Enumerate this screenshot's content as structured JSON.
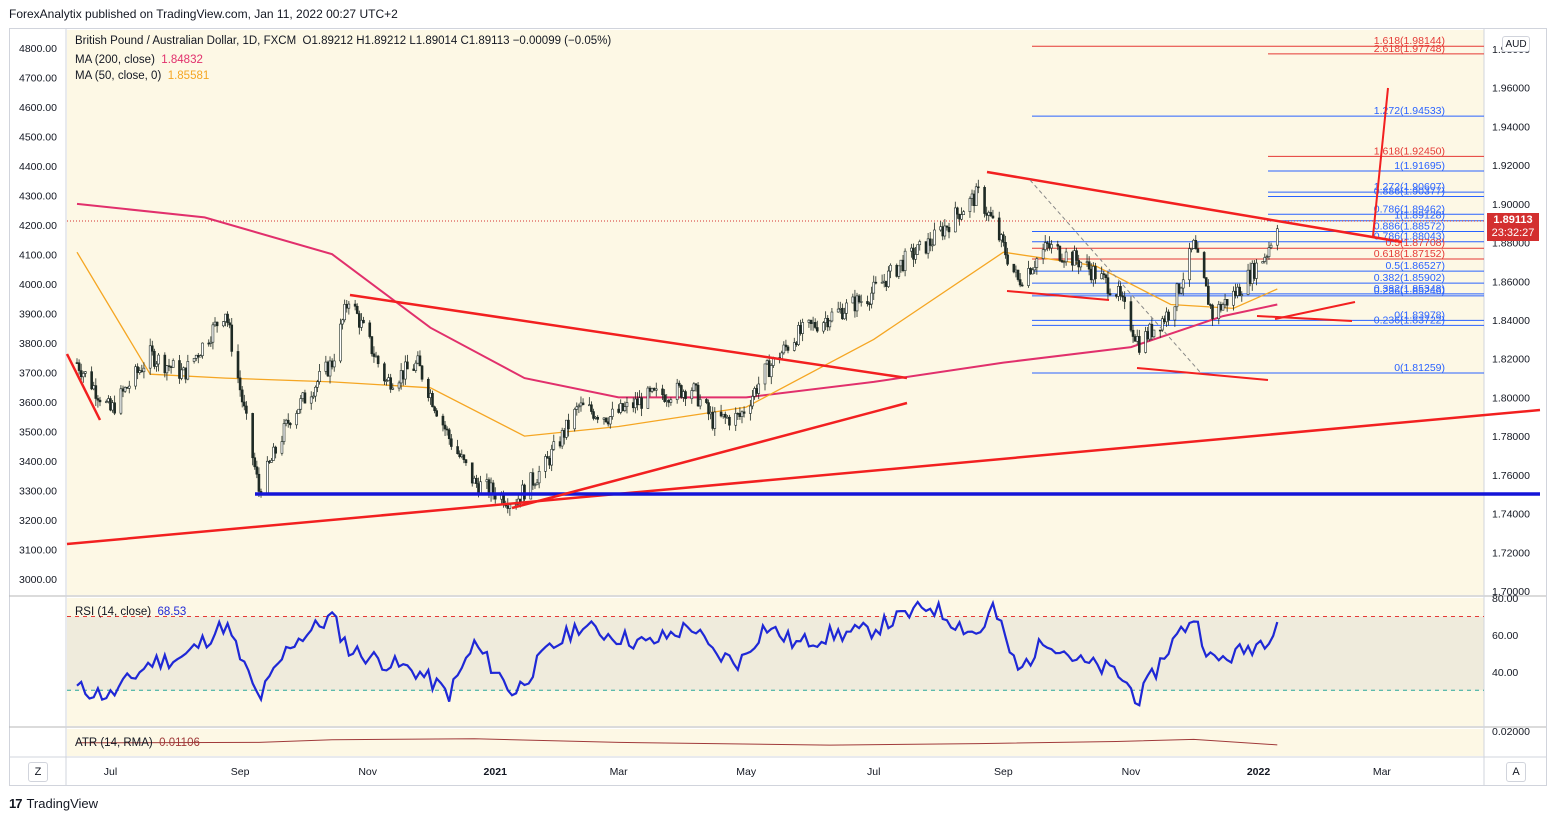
{
  "publisher_line": "ForexAnalytix published on TradingView.com, Jan 11, 2022 00:27 UTC+2",
  "branding": {
    "logo": "17",
    "name": "TradingView"
  },
  "currency_button": "AUD",
  "price_badge": {
    "price": "1.89113",
    "countdown": "23:32:27"
  },
  "corner_buttons": {
    "left": "Z",
    "right": "A"
  },
  "legend": {
    "symbol_line": "British Pound / Australian Dollar, 1D, FXCM",
    "ohlc": "O1.89212 H1.89212 L1.89014 C1.89113 −0.00099 (−0.05%)",
    "ma200_label": "MA (200, close)",
    "ma200_value": "1.84832",
    "ma50_label": "MA (50, close, 0)",
    "ma50_value": "1.85581",
    "rsi_label": "RSI (14, close)",
    "rsi_value": "68.53",
    "atr_label": "ATR (14, RMA)",
    "atr_value": "0.01106"
  },
  "colors": {
    "candle": "#1e2a24",
    "ma200": "#e1306c",
    "ma50": "#f5a623",
    "trendline": "#f22020",
    "support": "#1414d8",
    "fib_blue": "#2962ff",
    "fib_red": "#e53935",
    "rsi": "#1f28d6",
    "atr": "#a03a3a",
    "panel_bg": "#fdf8e5",
    "badge": "#d32f2f"
  },
  "chart_data": [
    {
      "type": "line",
      "subtype": "candlestick",
      "title": "British Pound / Australian Dollar, 1D, FXCM",
      "right_axis_ticks": [
        "1.98000",
        "1.96000",
        "1.94000",
        "1.92000",
        "1.90000",
        "1.88000",
        "1.86000",
        "1.84000",
        "1.82000",
        "1.80000",
        "1.78000",
        "1.76000",
        "1.74000",
        "1.72000",
        "1.70000"
      ],
      "left_axis_ticks": [
        "4800.00",
        "4700.00",
        "4600.00",
        "4500.00",
        "4400.00",
        "4300.00",
        "4200.00",
        "4100.00",
        "4000.00",
        "3900.00",
        "3800.00",
        "3700.00",
        "3600.00",
        "3500.00",
        "3400.00",
        "3300.00",
        "3200.00",
        "3100.00",
        "3000.00"
      ],
      "x_tick_labels": [
        "Jul",
        "Sep",
        "Nov",
        "2021",
        "Mar",
        "May",
        "Jul",
        "Sep",
        "Nov",
        "2022",
        "Mar"
      ],
      "ylim": [
        1.7,
        1.98
      ],
      "series": [
        {
          "name": "GBPAUD close",
          "x": [
            "2020-06-15",
            "2020-07-01",
            "2020-07-20",
            "2020-08-05",
            "2020-08-25",
            "2020-09-10",
            "2020-09-25",
            "2020-10-15",
            "2020-10-23",
            "2020-11-10",
            "2020-11-25",
            "2020-12-10",
            "2020-12-22",
            "2021-01-10",
            "2021-01-25",
            "2021-02-10",
            "2021-02-25",
            "2021-03-15",
            "2021-04-05",
            "2021-04-15",
            "2021-04-28",
            "2021-05-10",
            "2021-05-25",
            "2021-06-10",
            "2021-06-28",
            "2021-07-15",
            "2021-07-28",
            "2021-08-10",
            "2021-08-20",
            "2021-08-27",
            "2021-09-08",
            "2021-09-22",
            "2021-10-08",
            "2021-10-25",
            "2021-11-05",
            "2021-11-20",
            "2021-12-01",
            "2021-12-10",
            "2021-12-22",
            "2022-01-05",
            "2022-01-10"
          ],
          "values": [
            1.818,
            1.793,
            1.822,
            1.812,
            1.845,
            1.752,
            1.79,
            1.818,
            1.852,
            1.808,
            1.817,
            1.779,
            1.756,
            1.746,
            1.765,
            1.795,
            1.79,
            1.8,
            1.805,
            1.788,
            1.79,
            1.813,
            1.832,
            1.842,
            1.852,
            1.87,
            1.88,
            1.895,
            1.905,
            1.89,
            1.86,
            1.878,
            1.87,
            1.855,
            1.828,
            1.845,
            1.878,
            1.843,
            1.855,
            1.875,
            1.891
          ]
        },
        {
          "name": "MA (200, close)",
          "x": [
            "2020-06-15",
            "2020-08-15",
            "2020-10-15",
            "2020-12-01",
            "2021-01-15",
            "2021-03-01",
            "2021-05-01",
            "2021-07-01",
            "2021-09-01",
            "2021-11-01",
            "2021-12-15",
            "2022-01-10"
          ],
          "values": [
            1.9,
            1.893,
            1.874,
            1.836,
            1.81,
            1.8,
            1.8,
            1.808,
            1.818,
            1.826,
            1.842,
            1.848
          ]
        },
        {
          "name": "MA (50, close, 0)",
          "x": [
            "2020-06-15",
            "2020-07-20",
            "2020-08-25",
            "2020-10-15",
            "2020-12-01",
            "2021-01-15",
            "2021-03-01",
            "2021-05-01",
            "2021-07-01",
            "2021-09-01",
            "2021-10-15",
            "2021-11-20",
            "2021-12-20",
            "2022-01-10"
          ],
          "values": [
            1.875,
            1.812,
            1.81,
            1.808,
            1.805,
            1.78,
            1.785,
            1.795,
            1.83,
            1.875,
            1.868,
            1.848,
            1.846,
            1.856
          ]
        }
      ],
      "fibonacci_levels": [
        {
          "label": "1.618(1.98144)",
          "value": 1.98144
        },
        {
          "label": "2.618(1.97748)",
          "value": 1.97748
        },
        {
          "label": "1.272(1.94533)",
          "value": 1.94533
        },
        {
          "label": "1.618(1.92450)",
          "value": 1.9245
        },
        {
          "label": "1(1.91695)",
          "value": 1.91695
        },
        {
          "label": "1.272(1.90607)",
          "value": 1.90607
        },
        {
          "label": "0.886(1.90377)",
          "value": 1.90377
        },
        {
          "label": "0.786(1.89462)",
          "value": 1.89462
        },
        {
          "label": "1(1.89128)",
          "value": 1.89128
        },
        {
          "label": "0.886(1.88572)",
          "value": 1.88572
        },
        {
          "label": "0.786(1.88043)",
          "value": 1.88043
        },
        {
          "label": "0.5(1.87708)",
          "value": 1.87708
        },
        {
          "label": "0.618(1.87152)",
          "value": 1.87152
        },
        {
          "label": "0.5(1.86527)",
          "value": 1.86527
        },
        {
          "label": "0.382(1.85902)",
          "value": 1.85902
        },
        {
          "label": "0.382(1.85348)",
          "value": 1.85348
        },
        {
          "label": "0.236(1.85246)",
          "value": 1.85246
        },
        {
          "label": "0(1.83978)",
          "value": 1.83978
        },
        {
          "label": "0.236(1.83722)",
          "value": 1.83722
        },
        {
          "label": "0(1.81259)",
          "value": 1.81259
        }
      ]
    },
    {
      "type": "line",
      "title": "RSI (14, close)",
      "y_ticks": [
        "80.00",
        "60.00",
        "40.00"
      ],
      "ylim": [
        15,
        80
      ],
      "reference_lines": [
        70,
        30
      ],
      "series": [
        {
          "name": "RSI (14, close)",
          "x": [
            "2020-06-15",
            "2020-07-01",
            "2020-07-20",
            "2020-08-05",
            "2020-08-25",
            "2020-09-10",
            "2020-09-25",
            "2020-10-15",
            "2020-10-23",
            "2020-11-10",
            "2020-11-25",
            "2020-12-10",
            "2020-12-22",
            "2021-01-10",
            "2021-01-25",
            "2021-02-10",
            "2021-02-25",
            "2021-03-15",
            "2021-04-05",
            "2021-04-15",
            "2021-04-28",
            "2021-05-10",
            "2021-05-25",
            "2021-06-10",
            "2021-06-28",
            "2021-07-15",
            "2021-07-28",
            "2021-08-10",
            "2021-08-20",
            "2021-08-27",
            "2021-09-08",
            "2021-09-22",
            "2021-10-08",
            "2021-10-25",
            "2021-11-05",
            "2021-11-20",
            "2021-12-01",
            "2021-12-10",
            "2021-12-22",
            "2022-01-05",
            "2022-01-10"
          ],
          "values": [
            31,
            27,
            45,
            48,
            66,
            25,
            55,
            70,
            52,
            45,
            40,
            28,
            55,
            28,
            50,
            65,
            60,
            55,
            65,
            50,
            45,
            65,
            55,
            60,
            62,
            70,
            76,
            66,
            60,
            75,
            40,
            58,
            45,
            40,
            25,
            55,
            70,
            45,
            50,
            58,
            68.5
          ]
        }
      ]
    },
    {
      "type": "area",
      "title": "ATR (14, RMA)",
      "ylim": [
        0.006,
        0.02
      ],
      "series": [
        {
          "name": "ATR (14, RMA)",
          "x": [
            "2020-06-15",
            "2020-09-10",
            "2020-10-15",
            "2020-12-22",
            "2021-03-01",
            "2021-06-10",
            "2021-08-20",
            "2021-10-25",
            "2021-12-01",
            "2022-01-10"
          ],
          "values": [
            0.0123,
            0.0125,
            0.014,
            0.0145,
            0.0125,
            0.011,
            0.0118,
            0.013,
            0.0142,
            0.0111
          ]
        }
      ]
    }
  ]
}
